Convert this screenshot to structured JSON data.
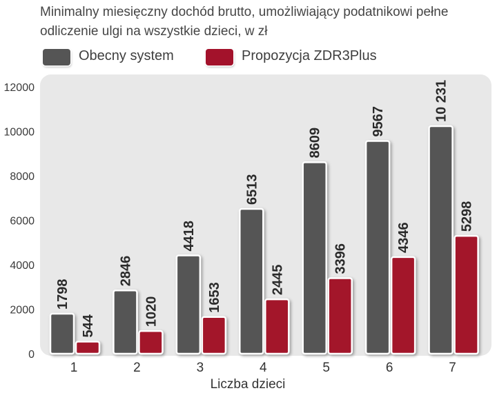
{
  "chart_data": {
    "type": "bar",
    "title": "Minimalny miesięczny dochód brutto, umożliwiający podatnikowi pełne odliczenie ulgi na wszystkie dzieci, w zł",
    "xlabel": "Liczba dzieci",
    "ylabel": "",
    "categories": [
      "1",
      "2",
      "3",
      "4",
      "5",
      "6",
      "7"
    ],
    "series": [
      {
        "name": "Obecny system",
        "color": "#555555",
        "values": [
          1798,
          2846,
          4418,
          6513,
          8609,
          9567,
          10231
        ],
        "labels": [
          "1798",
          "2846",
          "4418",
          "6513",
          "8609",
          "9567",
          "10 231"
        ]
      },
      {
        "name": "Propozycja ZDR3Plus",
        "color": "#a3122b",
        "values": [
          544,
          1020,
          1653,
          2445,
          3396,
          4346,
          5298
        ],
        "labels": [
          "544",
          "1020",
          "1653",
          "2445",
          "3396",
          "4346",
          "5298"
        ]
      }
    ],
    "ylim": [
      0,
      12000
    ],
    "yticks": [
      "0",
      "2000",
      "4000",
      "6000",
      "8000",
      "10000",
      "12000"
    ],
    "grid": false,
    "legend_position": "top-left"
  },
  "colors": {
    "plot_background": "#e8e8e8"
  }
}
